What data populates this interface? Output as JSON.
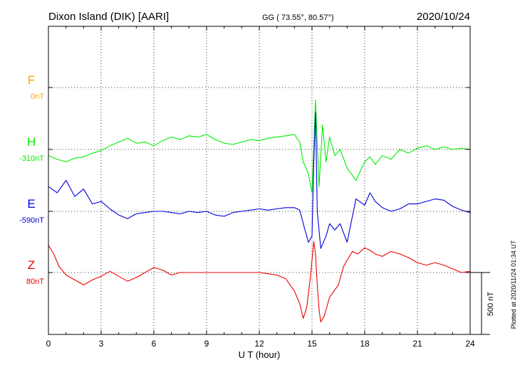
{
  "header": {
    "station": "Dixon Island (DIK)  [AARI]",
    "coords": "GG ( 73.55°,  80.57°)",
    "date": "2020/10/24"
  },
  "footer": {
    "plotted": "Plotted at 2020/11/24 01:34 UT"
  },
  "chart_data": {
    "type": "line",
    "xlabel": "U T (hour)",
    "xlim": [
      0,
      24
    ],
    "xticks": [
      0,
      3,
      6,
      9,
      12,
      15,
      18,
      21,
      24
    ],
    "xtick_labels": [
      "0",
      "3",
      "6",
      "9",
      "12",
      "15",
      "18",
      "21",
      "24"
    ],
    "scale_bar": {
      "label": "500 nT",
      "value_nT": 500
    },
    "series": [
      {
        "name": "F",
        "baseline_label": "0nT",
        "color": "#ffa500",
        "points": []
      },
      {
        "name": "H",
        "baseline_label": "-310nT",
        "color": "#00ee00",
        "points": [
          [
            0,
            -50
          ],
          [
            0.5,
            -80
          ],
          [
            1,
            -100
          ],
          [
            1.5,
            -70
          ],
          [
            2,
            -60
          ],
          [
            2.5,
            -30
          ],
          [
            3,
            -10
          ],
          [
            3.5,
            30
          ],
          [
            4,
            60
          ],
          [
            4.5,
            90
          ],
          [
            5,
            50
          ],
          [
            5.5,
            60
          ],
          [
            6,
            30
          ],
          [
            6.5,
            70
          ],
          [
            7,
            100
          ],
          [
            7.5,
            80
          ],
          [
            8,
            110
          ],
          [
            8.5,
            100
          ],
          [
            9,
            120
          ],
          [
            9.5,
            80
          ],
          [
            10,
            50
          ],
          [
            10.5,
            40
          ],
          [
            11,
            60
          ],
          [
            11.5,
            80
          ],
          [
            12,
            70
          ],
          [
            12.5,
            90
          ],
          [
            13,
            100
          ],
          [
            13.5,
            110
          ],
          [
            14,
            120
          ],
          [
            14.3,
            60
          ],
          [
            14.5,
            -100
          ],
          [
            14.8,
            -200
          ],
          [
            15,
            -350
          ],
          [
            15.2,
            400
          ],
          [
            15.4,
            -300
          ],
          [
            15.6,
            200
          ],
          [
            15.8,
            -100
          ],
          [
            16,
            100
          ],
          [
            16.3,
            -50
          ],
          [
            16.6,
            0
          ],
          [
            17,
            -150
          ],
          [
            17.5,
            -250
          ],
          [
            18,
            -100
          ],
          [
            18.3,
            -60
          ],
          [
            18.6,
            -120
          ],
          [
            19,
            -50
          ],
          [
            19.5,
            -80
          ],
          [
            20,
            0
          ],
          [
            20.5,
            -30
          ],
          [
            21,
            10
          ],
          [
            21.5,
            30
          ],
          [
            22,
            0
          ],
          [
            22.5,
            20
          ],
          [
            23,
            0
          ],
          [
            23.5,
            10
          ],
          [
            24,
            0
          ]
        ]
      },
      {
        "name": "E",
        "baseline_label": "-590nT",
        "color": "#0000dd",
        "points": [
          [
            0,
            200
          ],
          [
            0.5,
            150
          ],
          [
            1,
            250
          ],
          [
            1.5,
            120
          ],
          [
            2,
            180
          ],
          [
            2.5,
            60
          ],
          [
            3,
            80
          ],
          [
            3.5,
            20
          ],
          [
            4,
            -30
          ],
          [
            4.5,
            -60
          ],
          [
            5,
            -20
          ],
          [
            5.5,
            -10
          ],
          [
            6,
            0
          ],
          [
            6.5,
            0
          ],
          [
            7,
            -10
          ],
          [
            7.5,
            -20
          ],
          [
            8,
            0
          ],
          [
            8.5,
            -10
          ],
          [
            9,
            0
          ],
          [
            9.5,
            -30
          ],
          [
            10,
            -40
          ],
          [
            10.5,
            -10
          ],
          [
            11,
            0
          ],
          [
            11.5,
            10
          ],
          [
            12,
            20
          ],
          [
            12.5,
            10
          ],
          [
            13,
            20
          ],
          [
            13.5,
            30
          ],
          [
            14,
            30
          ],
          [
            14.3,
            10
          ],
          [
            14.6,
            -150
          ],
          [
            14.8,
            -250
          ],
          [
            15,
            -200
          ],
          [
            15.1,
            400
          ],
          [
            15.2,
            800
          ],
          [
            15.3,
            0
          ],
          [
            15.5,
            -300
          ],
          [
            15.8,
            -200
          ],
          [
            16,
            -100
          ],
          [
            16.3,
            -150
          ],
          [
            16.6,
            -100
          ],
          [
            17,
            -250
          ],
          [
            17.5,
            100
          ],
          [
            18,
            50
          ],
          [
            18.3,
            150
          ],
          [
            18.6,
            80
          ],
          [
            19,
            30
          ],
          [
            19.5,
            0
          ],
          [
            20,
            20
          ],
          [
            20.5,
            60
          ],
          [
            21,
            60
          ],
          [
            21.5,
            80
          ],
          [
            22,
            100
          ],
          [
            22.5,
            90
          ],
          [
            23,
            40
          ],
          [
            23.5,
            10
          ],
          [
            24,
            -10
          ]
        ]
      },
      {
        "name": "Z",
        "baseline_label": "80nT",
        "color": "#ee0000",
        "points": [
          [
            0,
            220
          ],
          [
            0.3,
            150
          ],
          [
            0.6,
            50
          ],
          [
            1,
            -20
          ],
          [
            1.5,
            -60
          ],
          [
            2,
            -100
          ],
          [
            2.5,
            -60
          ],
          [
            3,
            -30
          ],
          [
            3.5,
            10
          ],
          [
            4,
            -30
          ],
          [
            4.5,
            -70
          ],
          [
            5,
            -40
          ],
          [
            5.5,
            0
          ],
          [
            6,
            40
          ],
          [
            6.5,
            20
          ],
          [
            7,
            -20
          ],
          [
            7.5,
            0
          ],
          [
            8,
            0
          ],
          [
            9,
            0
          ],
          [
            10,
            0
          ],
          [
            11,
            0
          ],
          [
            12,
            0
          ],
          [
            12.5,
            -10
          ],
          [
            13,
            -20
          ],
          [
            13.5,
            -50
          ],
          [
            14,
            -150
          ],
          [
            14.3,
            -250
          ],
          [
            14.5,
            -370
          ],
          [
            14.7,
            -280
          ],
          [
            14.9,
            -50
          ],
          [
            15,
            100
          ],
          [
            15.1,
            250
          ],
          [
            15.2,
            150
          ],
          [
            15.3,
            -100
          ],
          [
            15.4,
            -300
          ],
          [
            15.5,
            -400
          ],
          [
            15.7,
            -350
          ],
          [
            16,
            -200
          ],
          [
            16.5,
            -100
          ],
          [
            16.8,
            50
          ],
          [
            17,
            100
          ],
          [
            17.3,
            170
          ],
          [
            17.6,
            150
          ],
          [
            18,
            200
          ],
          [
            18.3,
            180
          ],
          [
            18.6,
            150
          ],
          [
            19,
            130
          ],
          [
            19.5,
            170
          ],
          [
            20,
            150
          ],
          [
            20.5,
            120
          ],
          [
            21,
            80
          ],
          [
            21.5,
            60
          ],
          [
            22,
            80
          ],
          [
            22.5,
            60
          ],
          [
            23,
            30
          ],
          [
            23.5,
            0
          ],
          [
            24,
            10
          ]
        ]
      }
    ]
  }
}
